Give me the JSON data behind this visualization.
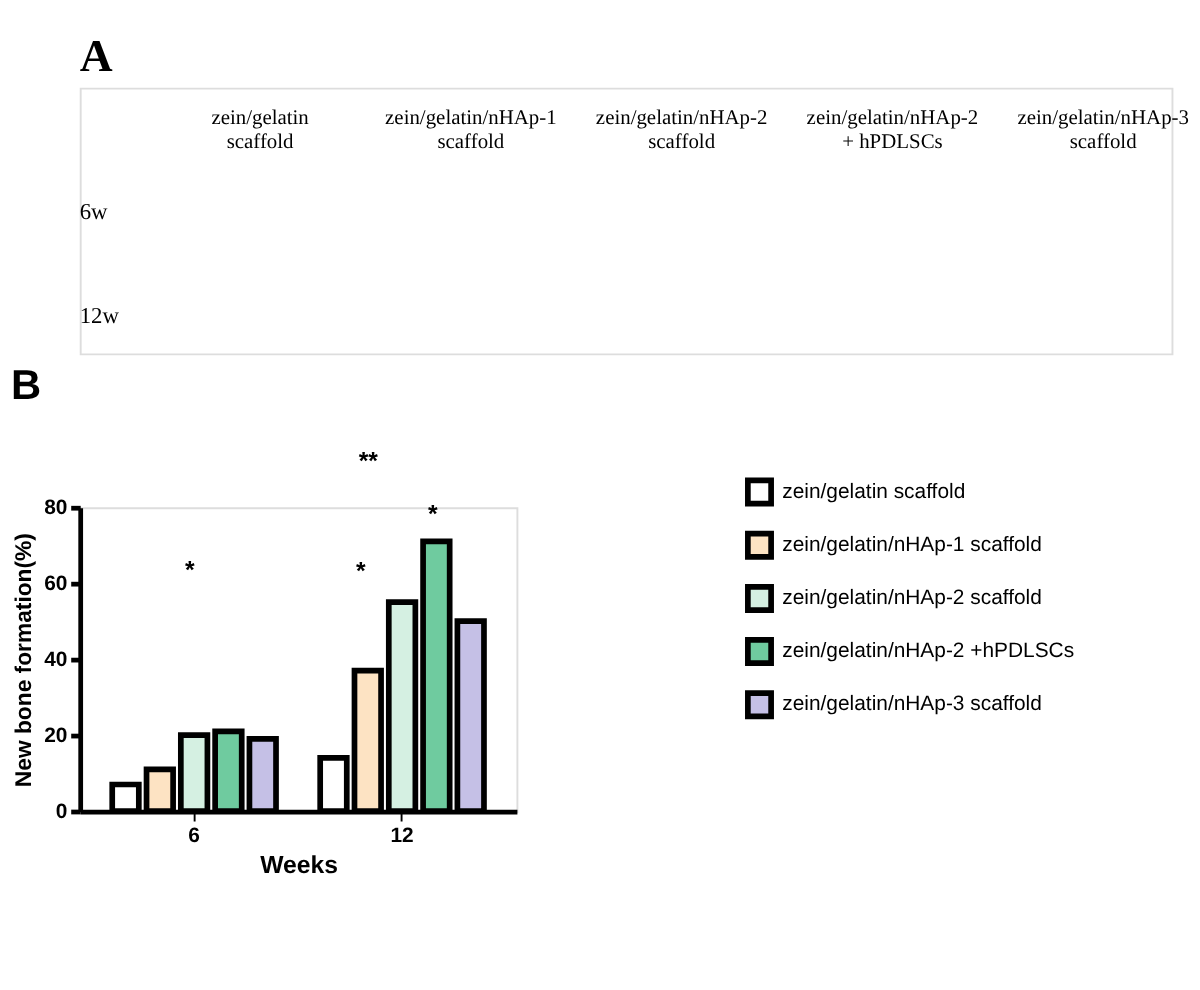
{
  "chart_data": [
    {
      "type": "other",
      "title": "A",
      "categories": [
        "zein/gelatin scaffold",
        "zein/gelatin/nHAp-1 scaffold",
        "zein/gelatin/nHAp-2 scaffold",
        "zein/gelatin/nHAp-2 + hPDLSCs",
        "zein/gelatin/nHAp-3 scaffold"
      ],
      "y_categories": [
        "6w",
        "12w"
      ]
    },
    {
      "type": "bar",
      "title": "B",
      "xlabel": "Weeks",
      "ylabel": "New bone formation(%)",
      "categories": [
        "6",
        "12"
      ],
      "series": [
        {
          "name": "zein/gelatin scaffold",
          "color": "#ffffff",
          "values": [
            7,
            14
          ]
        },
        {
          "name": "zein/gelatin/nHAp-1 scaffold",
          "color": "#fde3c3",
          "values": [
            11,
            37
          ]
        },
        {
          "name": "zein/gelatin/nHAp-2 scaffold",
          "color": "#d5f0e2",
          "values": [
            20,
            55
          ]
        },
        {
          "name": "zein/gelatin/nHAp-2 +hPDLSCs",
          "color": "#6fcb9f",
          "values": [
            21,
            71
          ]
        },
        {
          "name": "zein/gelatin/nHAp-3 scaffold",
          "color": "#c5c0e6",
          "values": [
            19,
            50
          ]
        }
      ],
      "ylim": [
        0,
        80
      ],
      "yticks": [
        0,
        20,
        40,
        60,
        80
      ],
      "grid": false,
      "legend": "right",
      "annotations": [
        "*",
        "*",
        "*",
        "**"
      ]
    }
  ]
}
